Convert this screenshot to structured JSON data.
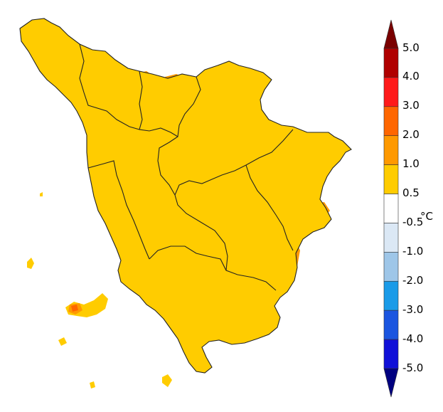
{
  "map": {
    "colors": {
      "land_default": "#ffcc00",
      "no_anomaly": "#ffffff",
      "warm_1_2": "#ff9900",
      "warm_2_3": "#ff6600",
      "border": "#222222"
    }
  },
  "colorbar": {
    "unit": "°C",
    "tick_labels": [
      "5.0",
      "4.0",
      "3.0",
      "2.0",
      "1.0",
      "0.5",
      "-0.5",
      "-1.0",
      "-2.0",
      "-3.0",
      "-4.0",
      "-5.0"
    ],
    "top_arrow_color": "#7a0000",
    "bottom_arrow_color": "#000080",
    "classes": [
      {
        "range": "4.0 – 5.0",
        "color": "#b00000"
      },
      {
        "range": "3.0 – 4.0",
        "color": "#ff1a1a"
      },
      {
        "range": "2.0 – 3.0",
        "color": "#ff6600"
      },
      {
        "range": "1.0 – 2.0",
        "color": "#ff9900"
      },
      {
        "range": "0.5 – 1.0",
        "color": "#ffcc00"
      },
      {
        "range": "-0.5 – 0.5",
        "color": "#ffffff"
      },
      {
        "range": "-1.0 – -0.5",
        "color": "#dbe8f5"
      },
      {
        "range": "-2.0 – -1.0",
        "color": "#9ec6e8"
      },
      {
        "range": "-3.0 – -2.0",
        "color": "#1a9be8"
      },
      {
        "range": "-4.0 – -3.0",
        "color": "#1a55e0"
      },
      {
        "range": "-5.0 – -4.0",
        "color": "#1010d8"
      }
    ]
  }
}
